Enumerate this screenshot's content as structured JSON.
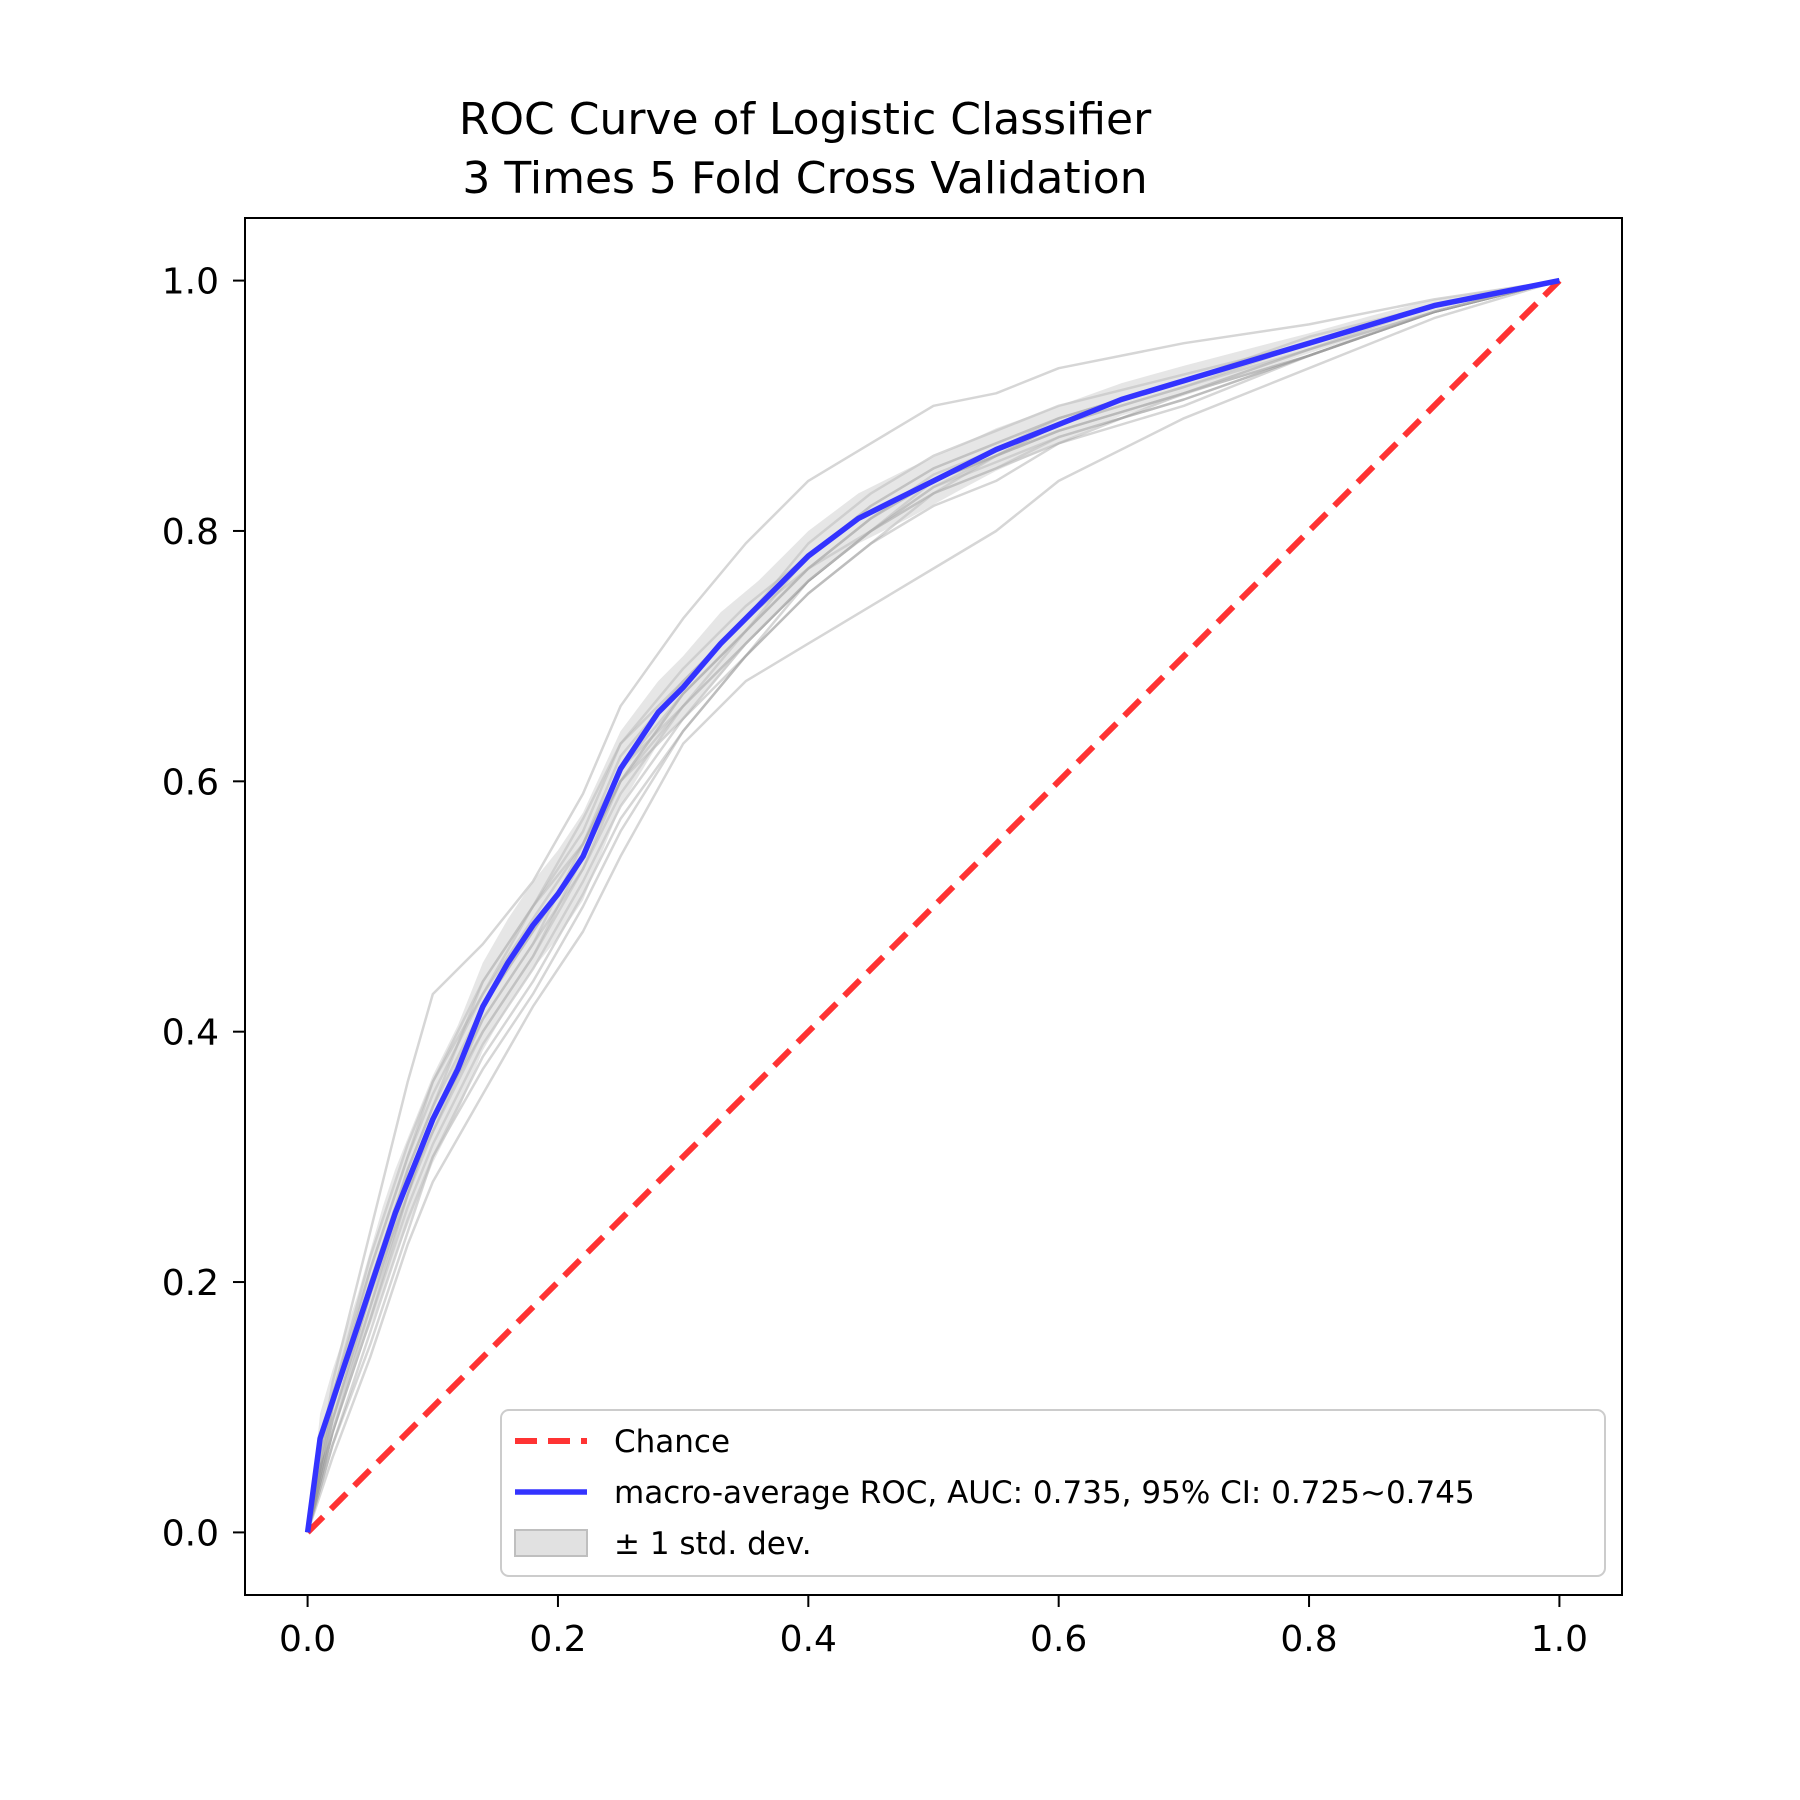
{
  "chart_data": {
    "type": "line",
    "title": [
      "ROC Curve of Logistic Classifier",
      "3 Times 5 Fold Cross Validation"
    ],
    "xlabel": "",
    "ylabel": "",
    "xlim": [
      -0.05,
      1.05
    ],
    "ylim": [
      -0.05,
      1.05
    ],
    "x_ticks": [
      "0.0",
      "0.2",
      "0.4",
      "0.6",
      "0.8",
      "1.0"
    ],
    "y_ticks": [
      "0.0",
      "0.2",
      "0.4",
      "0.6",
      "0.8",
      "1.0"
    ],
    "grid": false,
    "legend_position": "lower-right",
    "legend": [
      {
        "label": "Chance",
        "style": "dashed-line",
        "color": "#ff3333"
      },
      {
        "label": "macro-average ROC, AUC: 0.735, 95% CI: 0.725~0.745",
        "style": "line",
        "color": "#3333ff"
      },
      {
        "label": "± 1 std. dev.",
        "style": "patch",
        "color": "#c8c8c8"
      }
    ],
    "chance": {
      "x": [
        0,
        1
      ],
      "y": [
        0,
        1
      ],
      "color": "#ff3333"
    },
    "mean_roc": {
      "color": "#3333ff",
      "x": [
        0.0,
        0.01,
        0.02,
        0.03,
        0.04,
        0.05,
        0.06,
        0.07,
        0.08,
        0.09,
        0.1,
        0.12,
        0.14,
        0.16,
        0.18,
        0.2,
        0.22,
        0.25,
        0.28,
        0.3,
        0.33,
        0.36,
        0.4,
        0.44,
        0.48,
        0.52,
        0.55,
        0.6,
        0.65,
        0.7,
        0.75,
        0.8,
        0.85,
        0.9,
        0.95,
        1.0
      ],
      "y": [
        0.0,
        0.075,
        0.105,
        0.135,
        0.165,
        0.195,
        0.225,
        0.255,
        0.28,
        0.305,
        0.33,
        0.37,
        0.42,
        0.455,
        0.485,
        0.51,
        0.54,
        0.61,
        0.655,
        0.675,
        0.71,
        0.74,
        0.78,
        0.81,
        0.83,
        0.85,
        0.865,
        0.885,
        0.905,
        0.92,
        0.935,
        0.95,
        0.965,
        0.98,
        0.99,
        1.0
      ]
    },
    "std_band": {
      "color": "#d0d0d0",
      "upper": [
        0.0,
        0.095,
        0.13,
        0.16,
        0.19,
        0.225,
        0.26,
        0.29,
        0.315,
        0.34,
        0.365,
        0.405,
        0.455,
        0.49,
        0.52,
        0.545,
        0.575,
        0.64,
        0.68,
        0.7,
        0.735,
        0.76,
        0.8,
        0.83,
        0.85,
        0.868,
        0.882,
        0.9,
        0.918,
        0.932,
        0.945,
        0.958,
        0.972,
        0.985,
        0.993,
        1.0
      ],
      "lower": [
        0.0,
        0.055,
        0.08,
        0.11,
        0.14,
        0.165,
        0.19,
        0.22,
        0.245,
        0.27,
        0.295,
        0.335,
        0.385,
        0.42,
        0.45,
        0.475,
        0.505,
        0.58,
        0.63,
        0.65,
        0.685,
        0.72,
        0.76,
        0.79,
        0.81,
        0.832,
        0.848,
        0.87,
        0.892,
        0.908,
        0.925,
        0.942,
        0.958,
        0.975,
        0.987,
        1.0
      ]
    },
    "fold_curves": {
      "color": "#999999",
      "x": [
        0.0,
        0.02,
        0.05,
        0.08,
        0.1,
        0.14,
        0.18,
        0.22,
        0.25,
        0.3,
        0.35,
        0.4,
        0.45,
        0.5,
        0.55,
        0.6,
        0.7,
        0.8,
        0.9,
        1.0
      ],
      "curves": [
        [
          0.0,
          0.1,
          0.2,
          0.28,
          0.33,
          0.42,
          0.48,
          0.54,
          0.6,
          0.67,
          0.72,
          0.77,
          0.81,
          0.84,
          0.86,
          0.88,
          0.91,
          0.94,
          0.975,
          1.0
        ],
        [
          0.0,
          0.12,
          0.24,
          0.36,
          0.43,
          0.47,
          0.52,
          0.59,
          0.66,
          0.73,
          0.79,
          0.84,
          0.87,
          0.9,
          0.91,
          0.93,
          0.95,
          0.965,
          0.985,
          1.0
        ],
        [
          0.0,
          0.06,
          0.14,
          0.23,
          0.28,
          0.35,
          0.42,
          0.48,
          0.54,
          0.63,
          0.68,
          0.71,
          0.74,
          0.77,
          0.8,
          0.84,
          0.89,
          0.93,
          0.97,
          1.0
        ],
        [
          0.0,
          0.09,
          0.18,
          0.27,
          0.33,
          0.41,
          0.47,
          0.55,
          0.61,
          0.66,
          0.71,
          0.76,
          0.8,
          0.83,
          0.85,
          0.87,
          0.9,
          0.94,
          0.975,
          1.0
        ],
        [
          0.0,
          0.11,
          0.22,
          0.31,
          0.36,
          0.44,
          0.5,
          0.56,
          0.63,
          0.69,
          0.74,
          0.78,
          0.82,
          0.85,
          0.87,
          0.89,
          0.92,
          0.95,
          0.98,
          1.0
        ],
        [
          0.0,
          0.08,
          0.17,
          0.26,
          0.31,
          0.39,
          0.45,
          0.52,
          0.58,
          0.65,
          0.7,
          0.75,
          0.79,
          0.82,
          0.84,
          0.87,
          0.91,
          0.94,
          0.975,
          1.0
        ],
        [
          0.0,
          0.07,
          0.15,
          0.24,
          0.3,
          0.38,
          0.44,
          0.51,
          0.57,
          0.64,
          0.7,
          0.76,
          0.8,
          0.83,
          0.86,
          0.88,
          0.91,
          0.945,
          0.975,
          1.0
        ],
        [
          0.0,
          0.1,
          0.21,
          0.3,
          0.35,
          0.43,
          0.49,
          0.55,
          0.62,
          0.68,
          0.73,
          0.79,
          0.83,
          0.86,
          0.88,
          0.9,
          0.925,
          0.95,
          0.98,
          1.0
        ],
        [
          0.0,
          0.09,
          0.19,
          0.29,
          0.34,
          0.42,
          0.48,
          0.54,
          0.6,
          0.67,
          0.72,
          0.77,
          0.81,
          0.84,
          0.86,
          0.885,
          0.915,
          0.95,
          0.98,
          1.0
        ],
        [
          0.0,
          0.08,
          0.18,
          0.28,
          0.32,
          0.4,
          0.46,
          0.53,
          0.59,
          0.66,
          0.71,
          0.76,
          0.8,
          0.835,
          0.855,
          0.875,
          0.905,
          0.94,
          0.975,
          1.0
        ],
        [
          0.0,
          0.1,
          0.2,
          0.29,
          0.34,
          0.44,
          0.5,
          0.57,
          0.63,
          0.68,
          0.73,
          0.77,
          0.8,
          0.84,
          0.86,
          0.885,
          0.915,
          0.945,
          0.98,
          1.0
        ],
        [
          0.0,
          0.07,
          0.16,
          0.25,
          0.3,
          0.37,
          0.43,
          0.5,
          0.56,
          0.64,
          0.7,
          0.75,
          0.79,
          0.83,
          0.85,
          0.875,
          0.905,
          0.94,
          0.975,
          1.0
        ],
        [
          0.0,
          0.11,
          0.21,
          0.3,
          0.36,
          0.43,
          0.5,
          0.55,
          0.61,
          0.67,
          0.72,
          0.77,
          0.81,
          0.845,
          0.865,
          0.89,
          0.92,
          0.955,
          0.98,
          1.0
        ],
        [
          0.0,
          0.09,
          0.19,
          0.27,
          0.32,
          0.41,
          0.47,
          0.53,
          0.6,
          0.66,
          0.72,
          0.78,
          0.82,
          0.85,
          0.87,
          0.89,
          0.92,
          0.95,
          0.98,
          1.0
        ],
        [
          0.0,
          0.08,
          0.17,
          0.27,
          0.33,
          0.4,
          0.46,
          0.54,
          0.6,
          0.65,
          0.71,
          0.76,
          0.8,
          0.835,
          0.86,
          0.88,
          0.91,
          0.945,
          0.975,
          1.0
        ]
      ]
    }
  }
}
